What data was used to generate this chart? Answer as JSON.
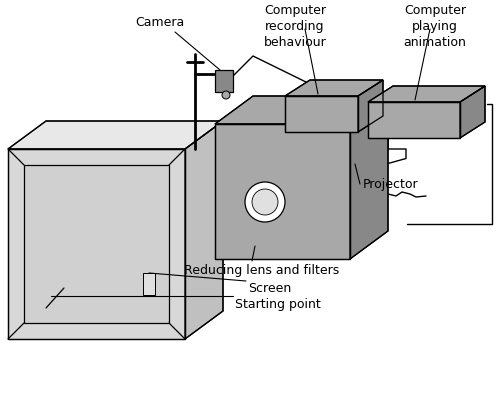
{
  "background_color": "#ffffff",
  "line_color": "#000000",
  "fill_light": "#d8d8d8",
  "fill_medium": "#a8a8a8",
  "fill_dark": "#888888",
  "fill_top": "#e8e8e8",
  "fill_side": "#c0c0c0",
  "labels": {
    "camera": "Camera",
    "computer_recording": "Computer\nrecording\nbehaviour",
    "computer_playing": "Computer\nplaying\nanimation",
    "projector": "Projector",
    "reducing": "Reducing lens and filters",
    "screen": "Screen",
    "starting_point": "Starting point"
  }
}
